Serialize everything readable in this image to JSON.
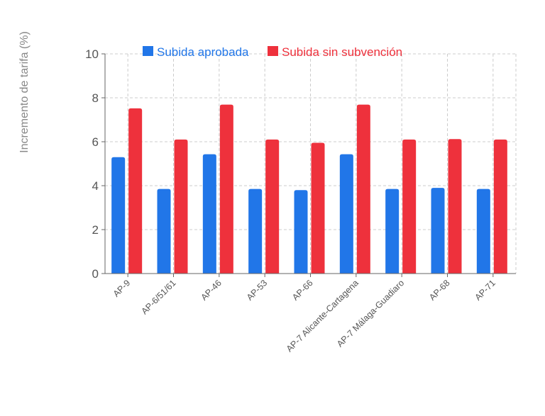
{
  "chart_data": {
    "type": "bar",
    "title": "",
    "xlabel": "",
    "ylabel": "Incremento de tarifa (%)",
    "ylim": [
      0,
      10
    ],
    "yticks": [
      0,
      2,
      4,
      6,
      8,
      10
    ],
    "grid": true,
    "legend_position": "top",
    "categories": [
      "AP-9",
      "AP-6/51/61",
      "AP-46",
      "AP-53",
      "AP-66",
      "AP-7 Alicante-Cartagena",
      "AP-7 Málaga-Guadiaro",
      "AP-68",
      "AP-71"
    ],
    "series": [
      {
        "name": "Subida aprobada",
        "color": "#2176e8",
        "values": [
          5.3,
          3.85,
          5.43,
          3.85,
          3.8,
          5.43,
          3.85,
          3.9,
          3.85
        ]
      },
      {
        "name": "Subida sin subvención",
        "color": "#ee313c",
        "values": [
          7.52,
          6.1,
          7.69,
          6.1,
          5.95,
          7.69,
          6.1,
          6.12,
          6.1
        ]
      }
    ]
  }
}
